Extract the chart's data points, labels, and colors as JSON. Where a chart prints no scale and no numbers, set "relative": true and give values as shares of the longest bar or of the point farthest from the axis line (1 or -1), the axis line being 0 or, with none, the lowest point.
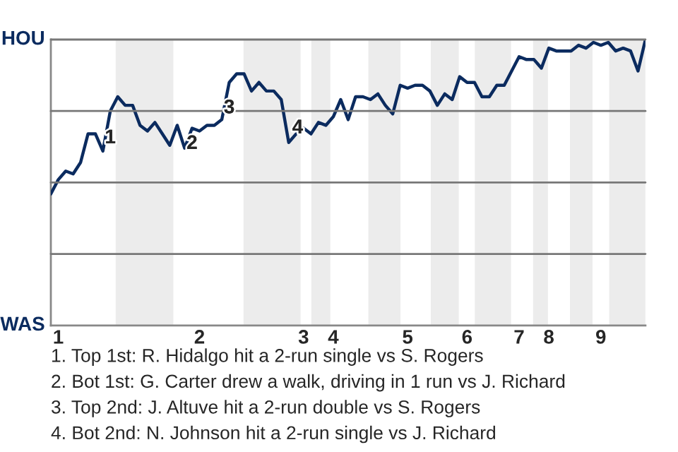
{
  "chart_data": {
    "type": "line",
    "relative": true,
    "categories": [
      null,
      "1",
      null,
      null,
      null,
      null,
      null,
      null,
      null,
      null,
      null,
      null,
      null,
      null,
      null,
      null,
      null,
      null,
      null,
      null,
      "2",
      null,
      null,
      null,
      null,
      null,
      null,
      null,
      null,
      null,
      null,
      null,
      null,
      null,
      "3",
      null,
      null,
      null,
      "4",
      null,
      null,
      null,
      null,
      null,
      null,
      null,
      null,
      null,
      "5",
      null,
      null,
      null,
      null,
      null,
      null,
      null,
      "6",
      null,
      null,
      null,
      null,
      null,
      null,
      "7",
      null,
      null,
      null,
      "8",
      null,
      null,
      null,
      null,
      null,
      null,
      "9",
      null,
      null,
      null,
      null,
      null,
      null
    ],
    "marker": "none",
    "line_style": "solid",
    "series": [
      {
        "color": "#0b2b5f",
        "values": [
          0.46,
          0.51,
          0.54,
          0.53,
          0.57,
          0.67,
          0.67,
          0.61,
          0.75,
          0.8,
          0.77,
          0.77,
          0.7,
          0.68,
          0.71,
          0.67,
          0.63,
          0.7,
          0.62,
          0.69,
          0.68,
          0.7,
          0.7,
          0.72,
          0.85,
          0.88,
          0.88,
          0.82,
          0.85,
          0.82,
          0.82,
          0.79,
          0.64,
          0.67,
          0.69,
          0.67,
          0.71,
          0.7,
          0.73,
          0.79,
          0.72,
          0.8,
          0.8,
          0.79,
          0.81,
          0.77,
          0.74,
          0.84,
          0.83,
          0.84,
          0.84,
          0.82,
          0.77,
          0.81,
          0.79,
          0.87,
          0.85,
          0.85,
          0.8,
          0.8,
          0.84,
          0.84,
          0.89,
          0.94,
          0.93,
          0.93,
          0.9,
          0.97,
          0.96,
          0.96,
          0.96,
          0.98,
          0.97,
          0.99,
          0.98,
          0.99,
          0.96,
          0.97,
          0.96,
          0.89,
          1.0
        ]
      }
    ],
    "ref_lines": [
      {
        "axis": "y",
        "value": 1,
        "label": "HOU",
        "color": "#777777"
      },
      {
        "axis": "y",
        "value": 0.75,
        "label": null,
        "color": "#777777"
      },
      {
        "axis": "y",
        "value": 0.5,
        "label": null,
        "color": "#777777"
      },
      {
        "axis": "y",
        "value": 0.25,
        "label": null,
        "color": "#777777"
      }
    ],
    "annotations": [
      "1",
      "2",
      "3",
      "4",
      "WAS",
      "1. Top 1st: R. Hidalgo hit a 2-run single vs S. Rogers",
      "2. Bot 1st: G. Carter drew a walk, driving in 1 run vs J. Richard",
      "3. Top 2nd: J. Altuve hit a 2-run double vs S. Rogers",
      "4. Bot 2nd: N. Johnson hit a 2-run single vs J. Richard"
    ]
  }
}
